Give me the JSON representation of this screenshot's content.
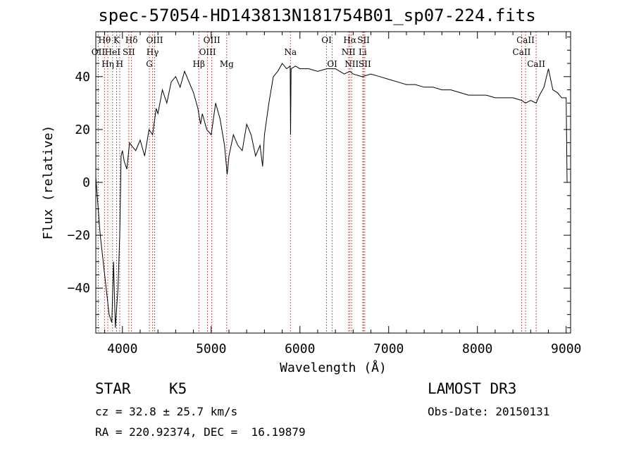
{
  "chart_data": {
    "type": "line",
    "title": "spec-57054-HD143813N181754B01_sp07-224.fits",
    "xlabel": "Wavelength (Å)",
    "ylabel": "Flux (relative)",
    "xlim": [
      3700,
      9050
    ],
    "ylim": [
      -57,
      57
    ],
    "xticks": [
      4000,
      5000,
      6000,
      7000,
      8000,
      9000
    ],
    "yticks": [
      -40,
      -20,
      0,
      20,
      40
    ],
    "series": [
      {
        "name": "spectrum",
        "x": [
          3700,
          3750,
          3800,
          3850,
          3880,
          3900,
          3920,
          3950,
          3970,
          3985,
          4000,
          4020,
          4050,
          4080,
          4100,
          4150,
          4200,
          4250,
          4300,
          4340,
          4380,
          4400,
          4450,
          4500,
          4550,
          4600,
          4650,
          4700,
          4750,
          4800,
          4850,
          4880,
          4900,
          4950,
          5000,
          5050,
          5100,
          5150,
          5180,
          5200,
          5250,
          5300,
          5350,
          5400,
          5450,
          5500,
          5550,
          5580,
          5600,
          5650,
          5700,
          5750,
          5800,
          5850,
          5890,
          5895,
          5900,
          5950,
          6000,
          6100,
          6200,
          6300,
          6400,
          6500,
          6563,
          6600,
          6700,
          6800,
          6900,
          7000,
          7100,
          7200,
          7300,
          7400,
          7500,
          7600,
          7700,
          7800,
          7900,
          8000,
          8100,
          8200,
          8300,
          8400,
          8498,
          8542,
          8600,
          8662,
          8700,
          8750,
          8800,
          8850,
          8900,
          8950,
          9000,
          9010
        ],
        "values": [
          2,
          -20,
          -35,
          -50,
          -53,
          -30,
          -55,
          -40,
          -20,
          10,
          12,
          8,
          5,
          15,
          14,
          12,
          16,
          10,
          20,
          18,
          28,
          26,
          35,
          30,
          38,
          40,
          36,
          42,
          38,
          34,
          28,
          22,
          26,
          20,
          18,
          30,
          24,
          14,
          3,
          10,
          18,
          14,
          12,
          22,
          18,
          10,
          14,
          6,
          18,
          30,
          40,
          42,
          45,
          43,
          44,
          18,
          43,
          44,
          43,
          43,
          42,
          43,
          43,
          41,
          42,
          41,
          40,
          41,
          40,
          39,
          38,
          37,
          37,
          36,
          36,
          35,
          35,
          34,
          33,
          33,
          33,
          32,
          32,
          32,
          31,
          30,
          31,
          30,
          33,
          36,
          43,
          35,
          34,
          32,
          32,
          0
        ]
      }
    ],
    "lines": [
      {
        "name": "Hθ",
        "x": 3798,
        "row": 1
      },
      {
        "name": "OII",
        "x": 3727,
        "row": 2
      },
      {
        "name": "Hη",
        "x": 3835,
        "row": 3
      },
      {
        "name": "K",
        "x": 3934,
        "row": 1
      },
      {
        "name": "HeI",
        "x": 3889,
        "row": 2
      },
      {
        "name": "H",
        "x": 3969,
        "row": 3
      },
      {
        "name": "Hδ",
        "x": 4102,
        "row": 1
      },
      {
        "name": "SII",
        "x": 4072,
        "row": 2
      },
      {
        "name": "OIII",
        "x": 4363,
        "row": 1
      },
      {
        "name": "Hγ",
        "x": 4340,
        "row": 2
      },
      {
        "name": "G",
        "x": 4304,
        "row": 3
      },
      {
        "name": "OIII",
        "x": 5007,
        "row": 1
      },
      {
        "name": "OIII",
        "x": 4959,
        "row": 2
      },
      {
        "name": "Hβ",
        "x": 4861,
        "row": 3
      },
      {
        "name": "Mg",
        "x": 5175,
        "row": 3
      },
      {
        "name": "Na",
        "x": 5893,
        "row": 2
      },
      {
        "name": "OI",
        "x": 6300,
        "row": 1
      },
      {
        "name": "OI",
        "x": 6364,
        "row": 3
      },
      {
        "name": "Hα",
        "x": 6563,
        "row": 1
      },
      {
        "name": "SII",
        "x": 6717,
        "row": 1
      },
      {
        "name": "NII",
        "x": 6548,
        "row": 2
      },
      {
        "name": "Li",
        "x": 6708,
        "row": 2
      },
      {
        "name": "NII",
        "x": 6583,
        "row": 3
      },
      {
        "name": "SII",
        "x": 6731,
        "row": 3
      },
      {
        "name": "CaII",
        "x": 8542,
        "row": 1
      },
      {
        "name": "CaII",
        "x": 8498,
        "row": 2
      },
      {
        "name": "CaII",
        "x": 8662,
        "row": 3
      }
    ]
  },
  "info": {
    "object_class": "STAR",
    "subclass": "K5",
    "survey": "LAMOST DR3",
    "cz": "cz = 32.8 ± 25.7 km/s",
    "obs_date": "Obs-Date: 20150131",
    "coords": "RA = 220.92374, DEC =  16.19879"
  }
}
